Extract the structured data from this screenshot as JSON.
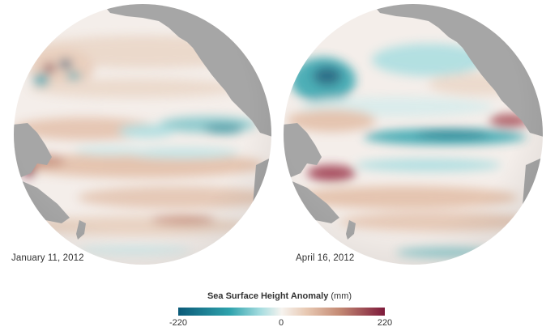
{
  "maps": [
    {
      "date": "January 11, 2012"
    },
    {
      "date": "April 16, 2012"
    }
  ],
  "legend": {
    "title": "Sea Surface Height Anomaly",
    "unit": "(mm)",
    "min": "-220",
    "mid": "0",
    "max": "220",
    "colors": {
      "negative_strong": "#0b5a78",
      "negative": "#2fa3ad",
      "negative_light": "#a7dde0",
      "zero": "#f6f3ef",
      "positive_light": "#e8c9b3",
      "positive": "#c48a74",
      "positive_strong": "#7d1a3a",
      "land": "#a6a6a6"
    }
  }
}
